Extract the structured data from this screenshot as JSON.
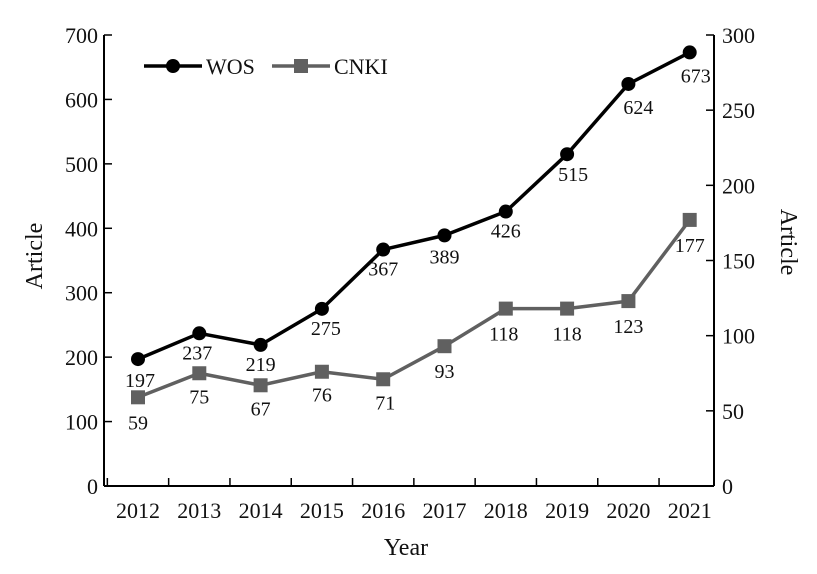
{
  "chart_data": {
    "type": "line",
    "categories": [
      "2012",
      "2013",
      "2014",
      "2015",
      "2016",
      "2017",
      "2018",
      "2019",
      "2020",
      "2021"
    ],
    "series": [
      {
        "name": "WOS",
        "axis": "left",
        "marker": "circle",
        "color": "#000000",
        "values": [
          197,
          237,
          219,
          275,
          367,
          389,
          426,
          515,
          624,
          673
        ]
      },
      {
        "name": "CNKI",
        "axis": "right",
        "marker": "square",
        "color": "#606060",
        "values": [
          59,
          75,
          67,
          76,
          71,
          93,
          118,
          118,
          123,
          177
        ]
      }
    ],
    "xlabel": "Year",
    "ylabel": "Article",
    "y2label": "Article",
    "ylim": [
      0,
      700
    ],
    "y2lim": [
      0,
      300
    ],
    "yticks": [
      0,
      100,
      200,
      300,
      400,
      500,
      600,
      700
    ],
    "y2ticks": [
      0,
      50,
      100,
      150,
      200,
      250,
      300
    ],
    "grid": false,
    "legend_position": "top-left"
  }
}
